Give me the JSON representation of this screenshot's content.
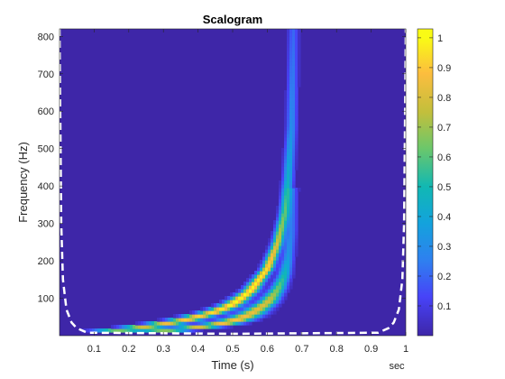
{
  "chart_data": {
    "type": "heatmap",
    "title": "Scalogram",
    "xlabel": "Time (s)",
    "ylabel": "Frequency (Hz)",
    "x_unit_label": "sec",
    "xlim": [
      0,
      1
    ],
    "ylim": [
      0,
      820
    ],
    "x_ticks": [
      "0.1",
      "0.2",
      "0.3",
      "0.4",
      "0.5",
      "0.6",
      "0.7",
      "0.8",
      "0.9",
      "1"
    ],
    "x_tick_values": [
      0.1,
      0.2,
      0.3,
      0.4,
      0.5,
      0.6,
      0.7,
      0.8,
      0.9,
      1.0
    ],
    "y_ticks": [
      "100",
      "200",
      "300",
      "400",
      "500",
      "600",
      "700",
      "800"
    ],
    "y_tick_values": [
      100,
      200,
      300,
      400,
      500,
      600,
      700,
      800
    ],
    "colorbar": {
      "colormap": "parula",
      "range": [
        0,
        1.03
      ],
      "ticks": [
        "0.1",
        "0.2",
        "0.3",
        "0.4",
        "0.5",
        "0.6",
        "0.7",
        "0.8",
        "0.9",
        "1"
      ],
      "tick_values": [
        0.1,
        0.2,
        0.3,
        0.4,
        0.5,
        0.6,
        0.7,
        0.8,
        0.9,
        1.0
      ]
    },
    "ridges": [
      {
        "t": [
          0.08,
          0.15,
          0.25,
          0.35,
          0.45,
          0.5,
          0.55,
          0.6,
          0.63,
          0.65,
          0.66,
          0.67,
          0.675
        ],
        "f": [
          5,
          12,
          25,
          40,
          65,
          85,
          120,
          180,
          250,
          330,
          420,
          560,
          820
        ],
        "peak": [
          0.3,
          0.6,
          0.8,
          0.9,
          0.95,
          1.0,
          1.0,
          0.95,
          0.8,
          0.6,
          0.45,
          0.3,
          0.2
        ]
      },
      {
        "t": [
          0.15,
          0.25,
          0.35,
          0.45,
          0.5,
          0.55,
          0.6,
          0.63,
          0.65,
          0.66,
          0.67,
          0.675
        ],
        "f": [
          5,
          10,
          18,
          30,
          40,
          58,
          90,
          125,
          165,
          210,
          280,
          400
        ],
        "peak": [
          0.3,
          0.55,
          0.75,
          0.85,
          0.9,
          0.85,
          0.8,
          0.65,
          0.5,
          0.35,
          0.25,
          0.15
        ]
      }
    ],
    "coi": {
      "style": "white-dashed",
      "t": [
        0.0,
        0.005,
        0.01,
        0.02,
        0.035,
        0.05,
        0.08,
        0.5,
        0.92,
        0.95,
        0.965,
        0.98,
        0.99,
        0.995,
        1.0
      ],
      "f": [
        820,
        300,
        150,
        70,
        35,
        20,
        8,
        5,
        8,
        20,
        35,
        70,
        150,
        300,
        820
      ]
    }
  }
}
